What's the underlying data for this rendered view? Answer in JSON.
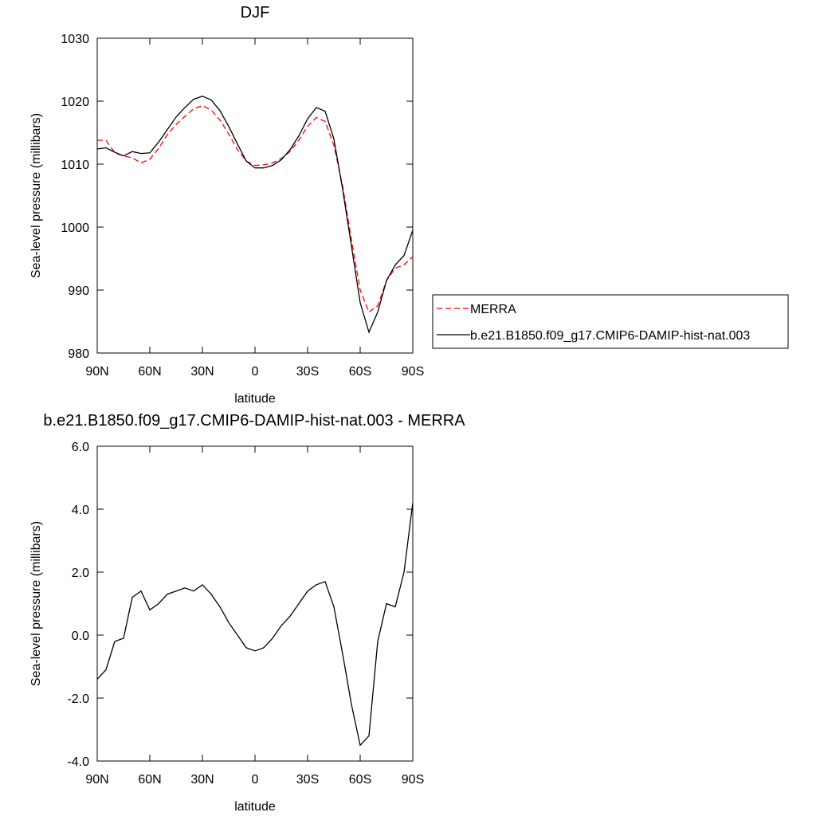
{
  "chart_data": [
    {
      "type": "line",
      "title": "DJF",
      "xlabel": "latitude",
      "ylabel": "Sea-level pressure (millibars)",
      "x": [
        90,
        85,
        80,
        75,
        70,
        65,
        60,
        55,
        50,
        45,
        40,
        35,
        30,
        25,
        20,
        15,
        10,
        5,
        0,
        -5,
        -10,
        -15,
        -20,
        -25,
        -30,
        -35,
        -40,
        -45,
        -50,
        -55,
        -60,
        -65,
        -70,
        -75,
        -80,
        -85,
        -90
      ],
      "xlim": [
        90,
        -90
      ],
      "xticks": [
        {
          "value": 90,
          "label": "90N"
        },
        {
          "value": 60,
          "label": "60N"
        },
        {
          "value": 30,
          "label": "30N"
        },
        0,
        {
          "value": -30,
          "label": "30S"
        },
        {
          "value": -60,
          "label": "60S"
        },
        {
          "value": -90,
          "label": "90S"
        }
      ],
      "ylim": [
        980,
        1030
      ],
      "yticks": [
        980,
        990,
        1000,
        1010,
        1020,
        1030
      ],
      "legend": "right",
      "series": [
        {
          "name": "MERRA",
          "color": "#ff0000",
          "dashed": true,
          "values": [
            1013.8,
            1013.8,
            1011.8,
            1011.3,
            1011.0,
            1010.2,
            1010.8,
            1012.5,
            1014.7,
            1016.3,
            1017.6,
            1018.8,
            1019.3,
            1018.6,
            1017.0,
            1014.8,
            1012.3,
            1010.5,
            1009.8,
            1009.9,
            1010.2,
            1010.9,
            1012.0,
            1013.8,
            1016.0,
            1017.4,
            1016.8,
            1013.0,
            1006.5,
            998.0,
            990.0,
            986.5,
            987.5,
            991.5,
            993.5,
            994.0,
            995.3
          ]
        },
        {
          "name": "b.e21.B1850.f09_g17.CMIP6-DAMIP-hist-nat.003",
          "color": "#000000",
          "dashed": false,
          "values": [
            1012.4,
            1012.6,
            1011.9,
            1011.3,
            1012.0,
            1011.7,
            1011.8,
            1013.5,
            1015.5,
            1017.5,
            1019.0,
            1020.3,
            1020.8,
            1020.2,
            1018.5,
            1016.0,
            1013.2,
            1010.5,
            1009.4,
            1009.4,
            1009.8,
            1010.7,
            1012.3,
            1014.5,
            1017.2,
            1019.0,
            1018.4,
            1014.0,
            1006.0,
            997.0,
            988.0,
            983.3,
            986.5,
            991.5,
            994.0,
            995.5,
            999.5
          ]
        }
      ]
    },
    {
      "type": "line",
      "title": "b.e21.B1850.f09_g17.CMIP6-DAMIP-hist-nat.003 - MERRA",
      "xlabel": "latitude",
      "ylabel": "Sea-level pressure (millibars)",
      "x": [
        90,
        85,
        80,
        75,
        70,
        65,
        60,
        55,
        50,
        45,
        40,
        35,
        30,
        25,
        20,
        15,
        10,
        5,
        0,
        -5,
        -10,
        -15,
        -20,
        -25,
        -30,
        -35,
        -40,
        -45,
        -50,
        -55,
        -60,
        -65,
        -70,
        -75,
        -80,
        -85,
        -90
      ],
      "xlim": [
        90,
        -90
      ],
      "xticks": [
        {
          "value": 90,
          "label": "90N"
        },
        {
          "value": 60,
          "label": "60N"
        },
        {
          "value": 30,
          "label": "30N"
        },
        0,
        {
          "value": -30,
          "label": "30S"
        },
        {
          "value": -60,
          "label": "60S"
        },
        {
          "value": -90,
          "label": "90S"
        }
      ],
      "ylim": [
        -4,
        6
      ],
      "yticks": [
        {
          "value": -4,
          "label": "-4.0"
        },
        {
          "value": -2,
          "label": "-2.0"
        },
        {
          "value": 0,
          "label": "0.0"
        },
        {
          "value": 2,
          "label": "2.0"
        },
        {
          "value": 4,
          "label": "4.0"
        },
        {
          "value": 6,
          "label": "6.0"
        }
      ],
      "series": [
        {
          "color": "#000000",
          "dashed": false,
          "values": [
            -1.4,
            -1.1,
            -0.2,
            -0.1,
            1.2,
            1.4,
            0.8,
            1.0,
            1.3,
            1.4,
            1.5,
            1.4,
            1.6,
            1.3,
            0.9,
            0.4,
            0.0,
            -0.4,
            -0.5,
            -0.4,
            -0.1,
            0.3,
            0.6,
            1.0,
            1.4,
            1.6,
            1.7,
            0.9,
            -0.6,
            -2.2,
            -3.5,
            -3.2,
            -0.2,
            1.0,
            0.9,
            2.0,
            4.2
          ]
        }
      ]
    }
  ]
}
